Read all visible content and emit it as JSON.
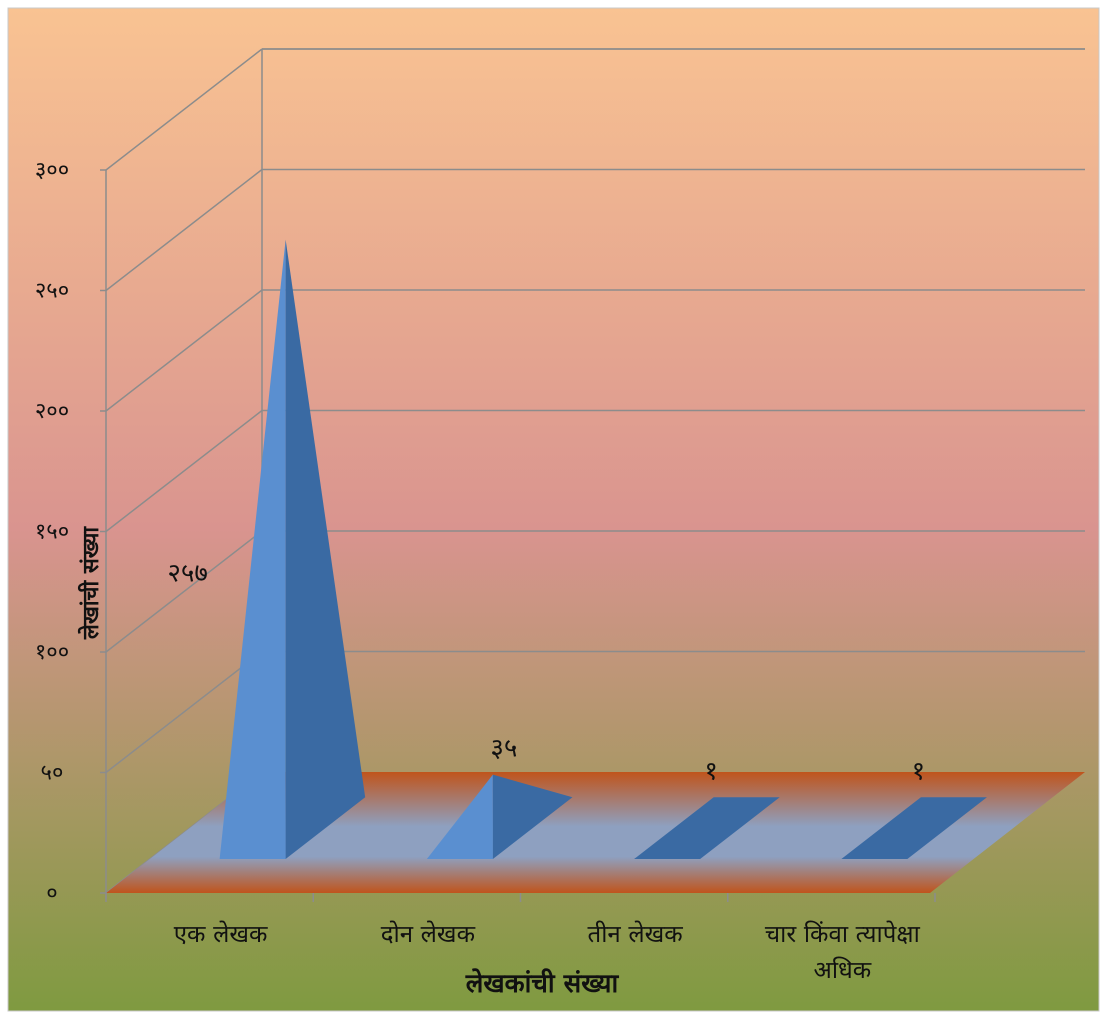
{
  "chart_data": {
    "type": "bar",
    "bar_shape": "pyramid-3d",
    "categories": [
      "एक लेखक",
      "दोन लेखक",
      "तीन लेखक",
      "चार किंवा त्यापेक्षा अधिक"
    ],
    "values": [
      257,
      35,
      1,
      1
    ],
    "data_labels": [
      "२५७",
      "३५",
      "१",
      "१"
    ],
    "yticks": [
      0,
      50,
      100,
      150,
      200,
      250,
      300
    ],
    "ytick_labels": [
      "०",
      "५०",
      "१००",
      "१५०",
      "२००",
      "२५०",
      "३००"
    ],
    "ylim": [
      0,
      300
    ],
    "xlabel": "लेखकांची संख्या",
    "ylabel": "लेखांची संख्या",
    "grid": true,
    "legend": "none",
    "colors": {
      "bg_top": "#f9c392",
      "bg_mid": "#d9948f",
      "bg_bottom": "#7f9a40",
      "floor_edge": "#c0541c",
      "floor_center": "#8ea0c0",
      "bar_front": "#5a8fd0",
      "bar_side": "#3a6aa3",
      "gridline": "#8c8c8c"
    }
  }
}
